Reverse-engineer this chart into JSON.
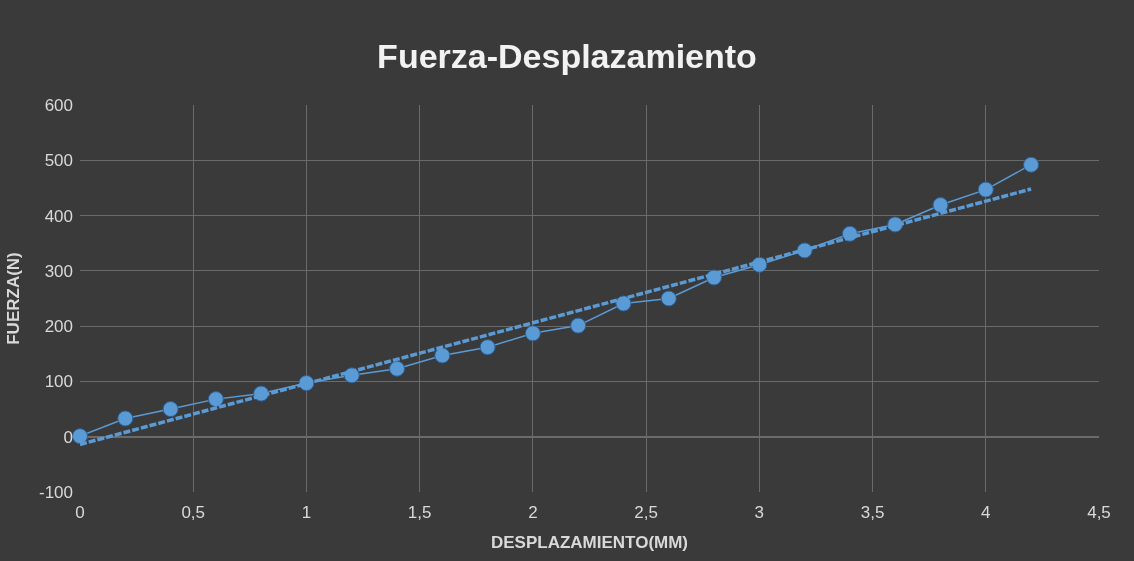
{
  "chart_data": {
    "type": "line",
    "title": "Fuerza-Desplazamiento",
    "xlabel": "DESPLAZAMIENTO(MM)",
    "ylabel": "FUERZA(N)",
    "x": [
      0,
      0.2,
      0.4,
      0.6,
      0.8,
      1.0,
      1.2,
      1.4,
      1.6,
      1.8,
      2.0,
      2.2,
      2.4,
      2.6,
      2.8,
      3.0,
      3.2,
      3.4,
      3.6,
      3.8,
      4.0,
      4.2
    ],
    "series": [
      {
        "color": "#5b9bd5",
        "marker": "circle",
        "line_style": "solid",
        "values": [
          1,
          33,
          50,
          68,
          78,
          97,
          111,
          123,
          147,
          162,
          187,
          201,
          241,
          250,
          288,
          311,
          337,
          367,
          384,
          419,
          447,
          492
        ]
      },
      {
        "type": "line",
        "color": "#5b9bd5",
        "marker": "none",
        "line_style": "dashed",
        "x": [
          0,
          4.2
        ],
        "values": [
          -14,
          448
        ]
      }
    ],
    "xlim": [
      0,
      4.5
    ],
    "xticks": [
      0,
      {
        "value": 0.5,
        "label": "0,5"
      },
      1,
      {
        "value": 1.5,
        "label": "1,5"
      },
      2,
      {
        "value": 2.5,
        "label": "2,5"
      },
      3,
      {
        "value": 3.5,
        "label": "3,5"
      },
      4,
      {
        "value": 4.5,
        "label": "4,5"
      }
    ],
    "ylim": [
      -100,
      600
    ],
    "yticks": [
      -100,
      0,
      100,
      200,
      300,
      400,
      500,
      600
    ],
    "grid": true
  }
}
